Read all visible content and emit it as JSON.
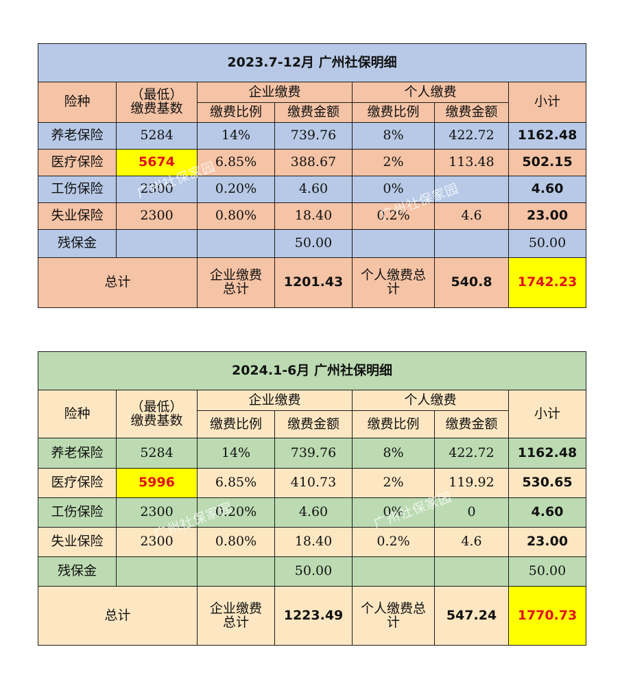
{
  "watermark": "广州社保家园",
  "tables": [
    {
      "title": "2023.7-12月 广州社保明细",
      "headers": {
        "type": "险种",
        "base": "（最低）\n缴费基数",
        "company": "企业缴费",
        "personal": "个人缴费",
        "rate": "缴费比例",
        "amount": "缴费金额",
        "subtotal": "小计"
      },
      "rows": [
        {
          "name": "养老保险",
          "base": "5284",
          "c_rate": "14%",
          "c_amt": "739.76",
          "p_rate": "8%",
          "p_amt": "422.72",
          "subtotal": "1162.48"
        },
        {
          "name": "医疗保险",
          "base": "5674",
          "c_rate": "6.85%",
          "c_amt": "388.67",
          "p_rate": "2%",
          "p_amt": "113.48",
          "subtotal": "502.15"
        },
        {
          "name": "工伤保险",
          "base": "2300",
          "c_rate": "0.20%",
          "c_amt": "4.60",
          "p_rate": "0%",
          "p_amt": "",
          "subtotal": "4.60"
        },
        {
          "name": "失业保险",
          "base": "2300",
          "c_rate": "0.80%",
          "c_amt": "18.40",
          "p_rate": "0.2%",
          "p_amt": "4.6",
          "subtotal": "23.00"
        },
        {
          "name": "残保金",
          "base": "",
          "c_rate": "",
          "c_amt": "50.00",
          "p_rate": "",
          "p_amt": "",
          "subtotal": "50.00"
        }
      ],
      "total": {
        "label": "总计",
        "company_label": "企业缴费\n总计",
        "company_total": "1201.43",
        "personal_label": "个人缴费总\n计",
        "personal_total": "540.8",
        "grand_total": "1742.23"
      }
    },
    {
      "title": "2024.1-6月 广州社保明细",
      "headers": {
        "type": "险种",
        "base": "（最低）\n缴费基数",
        "company": "企业缴费",
        "personal": "个人缴费",
        "rate": "缴费比例",
        "amount": "缴费金额",
        "subtotal": "小计"
      },
      "rows": [
        {
          "name": "养老保险",
          "base": "5284",
          "c_rate": "14%",
          "c_amt": "739.76",
          "p_rate": "8%",
          "p_amt": "422.72",
          "subtotal": "1162.48"
        },
        {
          "name": "医疗保险",
          "base": "5996",
          "c_rate": "6.85%",
          "c_amt": "410.73",
          "p_rate": "2%",
          "p_amt": "119.92",
          "subtotal": "530.65"
        },
        {
          "name": "工伤保险",
          "base": "2300",
          "c_rate": "0.20%",
          "c_amt": "4.60",
          "p_rate": "0%",
          "p_amt": "0",
          "subtotal": "4.60"
        },
        {
          "name": "失业保险",
          "base": "2300",
          "c_rate": "0.80%",
          "c_amt": "18.40",
          "p_rate": "0.2%",
          "p_amt": "4.6",
          "subtotal": "23.00"
        },
        {
          "name": "残保金",
          "base": "",
          "c_rate": "",
          "c_amt": "50.00",
          "p_rate": "",
          "p_amt": "",
          "subtotal": "50.00"
        }
      ],
      "total": {
        "label": "总计",
        "company_label": "企业缴费\n总计",
        "company_total": "1223.49",
        "personal_label": "个人缴费总\n计",
        "personal_total": "547.24",
        "grand_total": "1770.73"
      }
    }
  ],
  "colors": {
    "table1_header": "#b7c9e6",
    "table1_alt": "#f5c3a5",
    "table2_header": "#bcdbb2",
    "table2_alt": "#fde7c2",
    "highlight": "#ffff00",
    "emphasis_text": "#e0121b"
  }
}
